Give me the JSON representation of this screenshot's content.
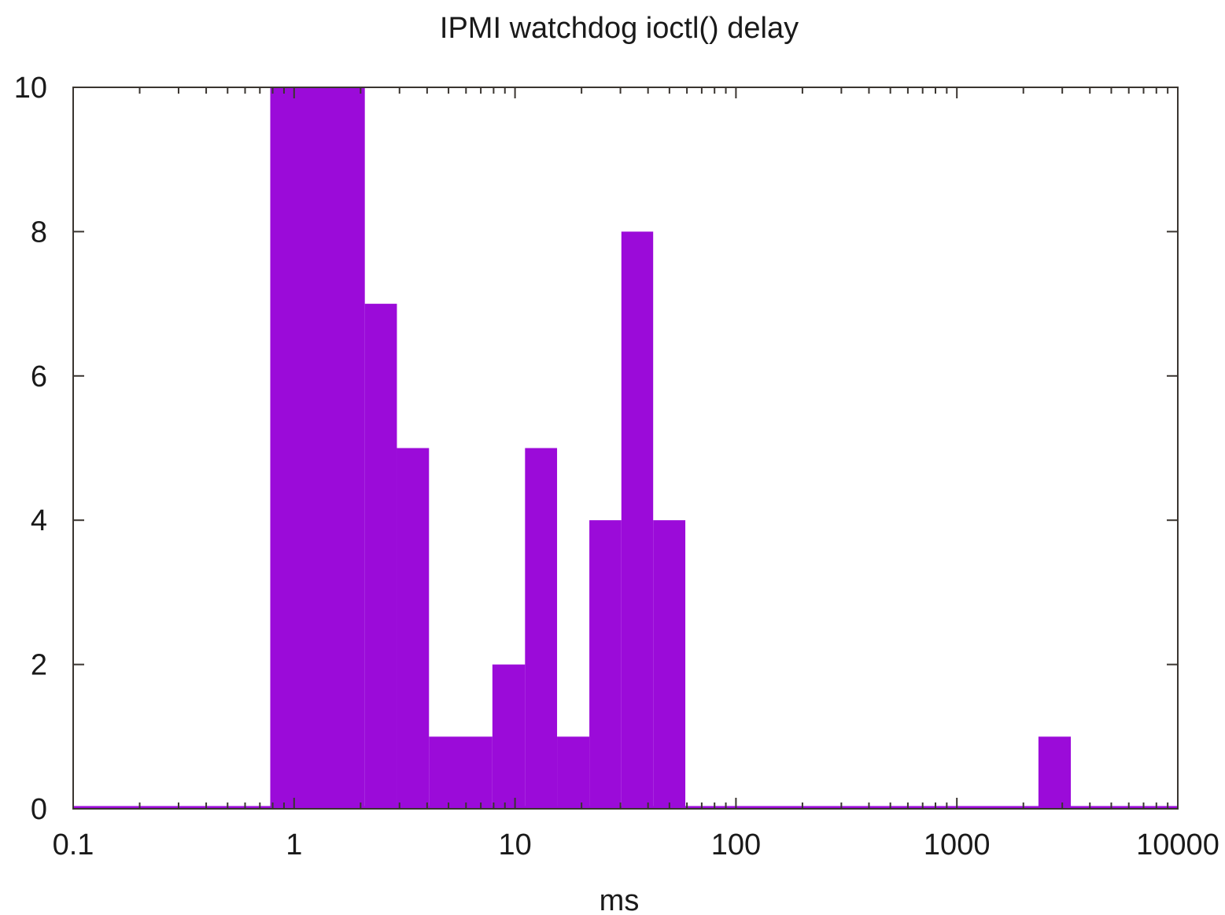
{
  "chart_data": {
    "type": "bar",
    "title": "IPMI watchdog ioctl() delay",
    "xlabel": "ms",
    "ylabel": "",
    "xscale": "log",
    "xlim": [
      0.1,
      10000
    ],
    "ylim": [
      0,
      10
    ],
    "grid": false,
    "legend": "none",
    "fill_color": "#9b0bd9",
    "axis_color": "#3a3530",
    "x_ticks": [
      "0.1",
      "1",
      "10",
      "100",
      "1000",
      "10000"
    ],
    "y_ticks": [
      "0",
      "2",
      "4",
      "6",
      "8",
      "10"
    ],
    "bins": [
      {
        "start": 0.78,
        "end": 2.09,
        "value": 10
      },
      {
        "start": 2.09,
        "end": 2.92,
        "value": 7
      },
      {
        "start": 2.92,
        "end": 4.08,
        "value": 5
      },
      {
        "start": 4.08,
        "end": 7.9,
        "value": 1
      },
      {
        "start": 7.9,
        "end": 11.1,
        "value": 2
      },
      {
        "start": 11.1,
        "end": 15.5,
        "value": 5
      },
      {
        "start": 15.5,
        "end": 21.7,
        "value": 1
      },
      {
        "start": 21.7,
        "end": 30.3,
        "value": 4
      },
      {
        "start": 30.3,
        "end": 42.2,
        "value": 8
      },
      {
        "start": 42.2,
        "end": 59.0,
        "value": 4
      },
      {
        "start": 2340,
        "end": 3280,
        "value": 1
      }
    ]
  }
}
